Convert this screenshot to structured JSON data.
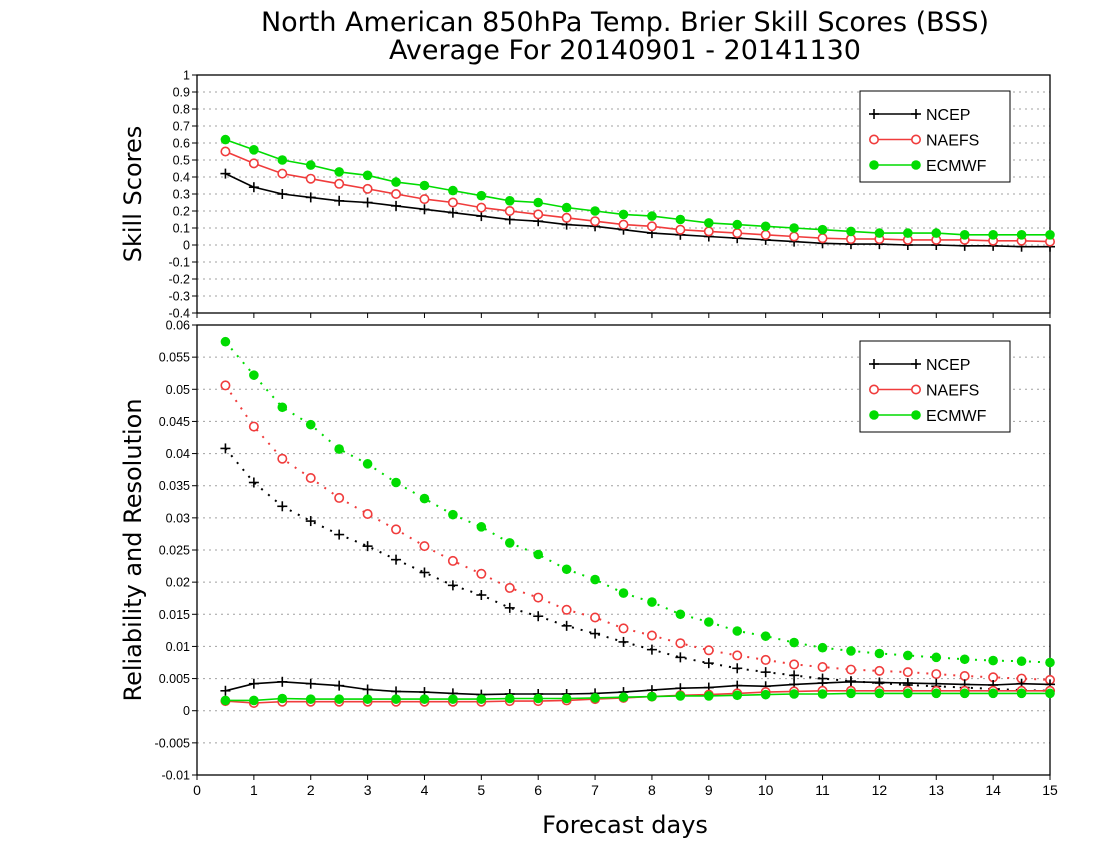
{
  "title_line1": "North American 850hPa Temp. Brier Skill Scores (BSS)",
  "title_line2": "Average For 20140901 - 20141130",
  "xlabel": "Forecast days",
  "colors": {
    "NCEP": "#000000",
    "NAEFS": "#f03c3c",
    "ECMWF": "#00dc00",
    "grid": "#a0a0a0"
  },
  "chart_data": [
    {
      "type": "line",
      "ylabel": "Skill Scores",
      "xlim": [
        0,
        15
      ],
      "ylim": [
        -0.4,
        1
      ],
      "xticks": [
        0,
        1,
        2,
        3,
        4,
        5,
        6,
        7,
        8,
        9,
        10,
        11,
        12,
        13,
        14,
        15
      ],
      "yticks": [
        -0.4,
        -0.3,
        -0.2,
        -0.1,
        0,
        0.1,
        0.2,
        0.3,
        0.4,
        0.5,
        0.6,
        0.7,
        0.8,
        0.9,
        1
      ],
      "ytick_labels": [
        "-0.4",
        "-0.3",
        "-0.2",
        "-0.1",
        "0",
        "0.1",
        "0.2",
        "0.3",
        "0.4",
        "0.5",
        "0.6",
        "0.7",
        "0.8",
        "0.9",
        "1"
      ],
      "grid": "horizontal dotted",
      "legend_position": "top-right",
      "x": [
        0.5,
        1,
        1.5,
        2,
        2.5,
        3,
        3.5,
        4,
        4.5,
        5,
        5.5,
        6,
        6.5,
        7,
        7.5,
        8,
        8.5,
        9,
        9.5,
        10,
        10.5,
        11,
        11.5,
        12,
        12.5,
        13,
        13.5,
        14,
        14.5,
        15
      ],
      "series": [
        {
          "name": "NCEP",
          "marker": "plus",
          "line": "solid",
          "values": [
            0.42,
            0.34,
            0.3,
            0.28,
            0.26,
            0.25,
            0.23,
            0.21,
            0.19,
            0.17,
            0.15,
            0.14,
            0.12,
            0.11,
            0.09,
            0.07,
            0.06,
            0.05,
            0.04,
            0.03,
            0.02,
            0.01,
            0.005,
            0.005,
            0.0,
            0.0,
            -0.005,
            -0.005,
            -0.01,
            -0.01
          ]
        },
        {
          "name": "NAEFS",
          "marker": "circle-open",
          "line": "solid",
          "values": [
            0.55,
            0.48,
            0.42,
            0.39,
            0.36,
            0.33,
            0.3,
            0.27,
            0.25,
            0.22,
            0.2,
            0.18,
            0.16,
            0.14,
            0.12,
            0.11,
            0.09,
            0.08,
            0.07,
            0.06,
            0.05,
            0.04,
            0.035,
            0.035,
            0.03,
            0.03,
            0.03,
            0.025,
            0.025,
            0.02
          ]
        },
        {
          "name": "ECMWF",
          "marker": "circle-filled",
          "line": "solid",
          "values": [
            0.62,
            0.56,
            0.5,
            0.47,
            0.43,
            0.41,
            0.37,
            0.35,
            0.32,
            0.29,
            0.26,
            0.25,
            0.22,
            0.2,
            0.18,
            0.17,
            0.15,
            0.13,
            0.12,
            0.11,
            0.1,
            0.09,
            0.08,
            0.07,
            0.07,
            0.07,
            0.06,
            0.06,
            0.06,
            0.06
          ]
        }
      ]
    },
    {
      "type": "line",
      "ylabel": "Reliability and Resolution",
      "xlim": [
        0,
        15
      ],
      "ylim": [
        -0.01,
        0.06
      ],
      "xticks": [
        0,
        1,
        2,
        3,
        4,
        5,
        6,
        7,
        8,
        9,
        10,
        11,
        12,
        13,
        14,
        15
      ],
      "yticks": [
        -0.01,
        -0.005,
        0,
        0.005,
        0.01,
        0.015,
        0.02,
        0.025,
        0.03,
        0.035,
        0.04,
        0.045,
        0.05,
        0.055,
        0.06
      ],
      "ytick_labels": [
        "-0.01",
        "-0.005",
        "0",
        "0.005",
        "0.01",
        "0.015",
        "0.02",
        "0.025",
        "0.03",
        "0.035",
        "0.04",
        "0.045",
        "0.05",
        "0.055",
        "0.06"
      ],
      "grid": "horizontal dotted",
      "legend_position": "top-right",
      "x": [
        0.5,
        1,
        1.5,
        2,
        2.5,
        3,
        3.5,
        4,
        4.5,
        5,
        5.5,
        6,
        6.5,
        7,
        7.5,
        8,
        8.5,
        9,
        9.5,
        10,
        10.5,
        11,
        11.5,
        12,
        12.5,
        13,
        13.5,
        14,
        14.5,
        15
      ],
      "legend_series": [
        {
          "name": "NCEP",
          "marker": "plus"
        },
        {
          "name": "NAEFS",
          "marker": "circle-open"
        },
        {
          "name": "ECMWF",
          "marker": "circle-filled"
        }
      ],
      "series": [
        {
          "model": "NCEP",
          "kind": "resolution",
          "line": "dotted",
          "marker": "plus",
          "values": [
            0.0408,
            0.0355,
            0.0318,
            0.0295,
            0.0274,
            0.0256,
            0.0235,
            0.0215,
            0.0195,
            0.018,
            0.016,
            0.0147,
            0.0132,
            0.012,
            0.0107,
            0.0095,
            0.0083,
            0.0074,
            0.0066,
            0.006,
            0.0055,
            0.005,
            0.0046,
            0.0043,
            0.004,
            0.0038,
            0.0036,
            0.0034,
            0.0032,
            0.0031
          ]
        },
        {
          "model": "NAEFS",
          "kind": "resolution",
          "line": "dotted",
          "marker": "circle-open",
          "values": [
            0.0506,
            0.0442,
            0.0392,
            0.0362,
            0.0331,
            0.0306,
            0.0282,
            0.0256,
            0.0233,
            0.0213,
            0.0191,
            0.0176,
            0.0157,
            0.0145,
            0.0128,
            0.0117,
            0.0105,
            0.0094,
            0.0086,
            0.0079,
            0.0072,
            0.0068,
            0.0064,
            0.0062,
            0.006,
            0.0057,
            0.0054,
            0.0052,
            0.005,
            0.0048
          ]
        },
        {
          "model": "ECMWF",
          "kind": "resolution",
          "line": "dotted",
          "marker": "circle-filled",
          "values": [
            0.0574,
            0.0522,
            0.0472,
            0.0445,
            0.0407,
            0.0384,
            0.0355,
            0.033,
            0.0305,
            0.0286,
            0.0261,
            0.0243,
            0.022,
            0.0204,
            0.0183,
            0.0169,
            0.015,
            0.0138,
            0.0124,
            0.0116,
            0.0106,
            0.0098,
            0.0093,
            0.0089,
            0.0086,
            0.0083,
            0.008,
            0.0078,
            0.0077,
            0.0075
          ]
        },
        {
          "model": "NCEP",
          "kind": "reliability",
          "line": "solid",
          "marker": "plus",
          "values": [
            0.0031,
            0.0042,
            0.0045,
            0.0042,
            0.0039,
            0.0033,
            0.003,
            0.0029,
            0.0027,
            0.0025,
            0.0026,
            0.0026,
            0.0026,
            0.0027,
            0.0029,
            0.0032,
            0.0035,
            0.0036,
            0.0039,
            0.0038,
            0.0041,
            0.0043,
            0.0045,
            0.0044,
            0.0043,
            0.0042,
            0.0041,
            0.004,
            0.0042,
            0.0041
          ]
        },
        {
          "model": "NAEFS",
          "kind": "reliability",
          "line": "solid",
          "marker": "circle-open",
          "values": [
            0.0015,
            0.0012,
            0.0014,
            0.0014,
            0.0014,
            0.0014,
            0.0014,
            0.0014,
            0.0014,
            0.0014,
            0.0015,
            0.0015,
            0.0016,
            0.0018,
            0.002,
            0.0022,
            0.0024,
            0.0025,
            0.0027,
            0.0029,
            0.003,
            0.0031,
            0.0031,
            0.0031,
            0.0031,
            0.0031,
            0.0031,
            0.0031,
            0.0031,
            0.0031
          ]
        },
        {
          "model": "ECMWF",
          "kind": "reliability",
          "line": "solid",
          "marker": "circle-filled",
          "values": [
            0.0016,
            0.0016,
            0.0019,
            0.0018,
            0.0018,
            0.0018,
            0.0018,
            0.0018,
            0.0018,
            0.0018,
            0.0019,
            0.0019,
            0.0019,
            0.002,
            0.0021,
            0.0022,
            0.0023,
            0.0023,
            0.0024,
            0.0025,
            0.0026,
            0.0026,
            0.0027,
            0.0027,
            0.0027,
            0.0027,
            0.0027,
            0.0027,
            0.0027,
            0.0027
          ]
        }
      ]
    }
  ]
}
